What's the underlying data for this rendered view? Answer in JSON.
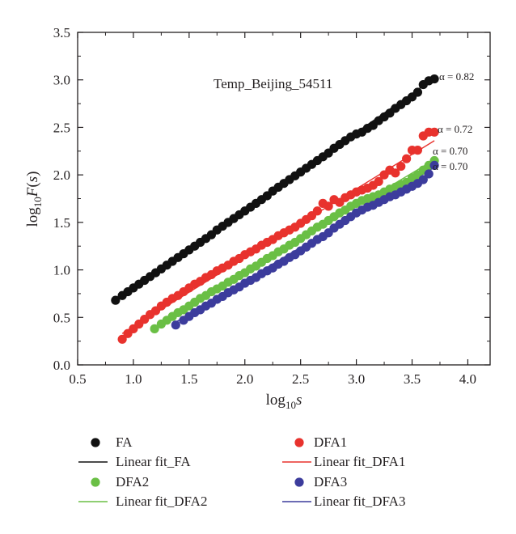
{
  "chart_data": {
    "type": "scatter",
    "title": "Temp_Beijing_54511",
    "xlabel": "log10s",
    "ylabel": "log10F(s)",
    "xlim": [
      0.5,
      4.2
    ],
    "ylim": [
      0.0,
      3.5
    ],
    "xticks": [
      "0.5",
      "1.0",
      "1.5",
      "2.0",
      "2.5",
      "3.0",
      "3.5",
      "4.0"
    ],
    "yticks": [
      "0.0",
      "0.5",
      "1.0",
      "1.5",
      "2.0",
      "2.5",
      "3.0",
      "3.5"
    ],
    "grid": false,
    "legend_position": "bottom",
    "series": [
      {
        "name": "FA",
        "color": "#111111",
        "alpha_label": "α = 0.82",
        "fit_name": "Linear fit_FA",
        "fit_color": "#111111",
        "fit": {
          "x": [
            0.85,
            3.7
          ],
          "y": [
            0.68,
            3.02
          ]
        },
        "x": [
          0.84,
          0.9,
          0.95,
          1.0,
          1.05,
          1.1,
          1.15,
          1.2,
          1.25,
          1.3,
          1.35,
          1.4,
          1.45,
          1.5,
          1.55,
          1.6,
          1.65,
          1.7,
          1.75,
          1.8,
          1.85,
          1.9,
          1.95,
          2.0,
          2.05,
          2.1,
          2.15,
          2.2,
          2.25,
          2.3,
          2.35,
          2.4,
          2.45,
          2.5,
          2.55,
          2.6,
          2.65,
          2.7,
          2.75,
          2.8,
          2.85,
          2.9,
          2.95,
          3.0,
          3.05,
          3.1,
          3.15,
          3.2,
          3.25,
          3.3,
          3.35,
          3.4,
          3.45,
          3.5,
          3.55,
          3.6,
          3.65,
          3.7
        ],
        "y": [
          0.68,
          0.73,
          0.77,
          0.81,
          0.85,
          0.89,
          0.93,
          0.97,
          1.01,
          1.05,
          1.09,
          1.13,
          1.17,
          1.21,
          1.25,
          1.29,
          1.33,
          1.37,
          1.42,
          1.46,
          1.5,
          1.54,
          1.58,
          1.62,
          1.66,
          1.7,
          1.74,
          1.78,
          1.83,
          1.87,
          1.91,
          1.95,
          1.99,
          2.03,
          2.07,
          2.11,
          2.15,
          2.19,
          2.23,
          2.28,
          2.32,
          2.36,
          2.4,
          2.43,
          2.45,
          2.49,
          2.52,
          2.57,
          2.61,
          2.65,
          2.7,
          2.74,
          2.78,
          2.82,
          2.87,
          2.95,
          2.99,
          3.01
        ]
      },
      {
        "name": "DFA1",
        "color": "#e8322d",
        "alpha_label": "α = 0.72",
        "fit_name": "Linear fit_DFA1",
        "fit_color": "#e8322d",
        "fit": {
          "x": [
            0.9,
            3.7
          ],
          "y": [
            0.33,
            2.36
          ]
        },
        "x": [
          0.9,
          0.95,
          1.0,
          1.05,
          1.1,
          1.15,
          1.2,
          1.25,
          1.3,
          1.35,
          1.4,
          1.45,
          1.5,
          1.55,
          1.6,
          1.65,
          1.7,
          1.75,
          1.8,
          1.85,
          1.9,
          1.95,
          2.0,
          2.05,
          2.1,
          2.15,
          2.2,
          2.25,
          2.3,
          2.35,
          2.4,
          2.45,
          2.5,
          2.55,
          2.6,
          2.65,
          2.7,
          2.75,
          2.8,
          2.85,
          2.9,
          2.95,
          3.0,
          3.05,
          3.1,
          3.15,
          3.2,
          3.25,
          3.3,
          3.35,
          3.4,
          3.45,
          3.5,
          3.55,
          3.6,
          3.65,
          3.7
        ],
        "y": [
          0.27,
          0.33,
          0.38,
          0.43,
          0.48,
          0.53,
          0.57,
          0.62,
          0.66,
          0.7,
          0.73,
          0.77,
          0.81,
          0.85,
          0.88,
          0.92,
          0.95,
          0.99,
          1.02,
          1.05,
          1.09,
          1.12,
          1.16,
          1.19,
          1.22,
          1.26,
          1.29,
          1.32,
          1.36,
          1.39,
          1.42,
          1.45,
          1.49,
          1.53,
          1.57,
          1.62,
          1.7,
          1.67,
          1.74,
          1.71,
          1.76,
          1.79,
          1.82,
          1.84,
          1.86,
          1.89,
          1.93,
          2.0,
          2.05,
          2.02,
          2.09,
          2.17,
          2.26,
          2.26,
          2.41,
          2.45,
          2.45
        ]
      },
      {
        "name": "DFA2",
        "color": "#6abf45",
        "alpha_label": "α = 0.70",
        "fit_name": "Linear fit_DFA2",
        "fit_color": "#6abf45",
        "fit": {
          "x": [
            1.2,
            3.7
          ],
          "y": [
            0.4,
            2.16
          ]
        },
        "x": [
          1.19,
          1.25,
          1.3,
          1.35,
          1.4,
          1.45,
          1.5,
          1.55,
          1.6,
          1.65,
          1.7,
          1.75,
          1.8,
          1.85,
          1.9,
          1.95,
          2.0,
          2.05,
          2.1,
          2.15,
          2.2,
          2.25,
          2.3,
          2.35,
          2.4,
          2.45,
          2.5,
          2.55,
          2.6,
          2.65,
          2.7,
          2.75,
          2.8,
          2.85,
          2.9,
          2.95,
          3.0,
          3.05,
          3.1,
          3.15,
          3.2,
          3.25,
          3.3,
          3.35,
          3.4,
          3.45,
          3.5,
          3.55,
          3.6,
          3.65,
          3.7
        ],
        "y": [
          0.38,
          0.43,
          0.47,
          0.51,
          0.55,
          0.58,
          0.62,
          0.66,
          0.7,
          0.73,
          0.77,
          0.8,
          0.83,
          0.87,
          0.9,
          0.94,
          0.97,
          1.01,
          1.04,
          1.08,
          1.12,
          1.15,
          1.19,
          1.22,
          1.26,
          1.29,
          1.33,
          1.37,
          1.41,
          1.45,
          1.48,
          1.52,
          1.56,
          1.6,
          1.63,
          1.67,
          1.7,
          1.73,
          1.75,
          1.77,
          1.79,
          1.82,
          1.85,
          1.87,
          1.9,
          1.92,
          1.97,
          2.0,
          2.05,
          2.1,
          2.15
        ]
      },
      {
        "name": "DFA3",
        "color": "#3c3c9c",
        "alpha_label": "α = 0.70",
        "fit_name": "Linear fit_DFA3",
        "fit_color": "#3c3c9c",
        "fit": {
          "x": [
            1.38,
            3.7
          ],
          "y": [
            0.45,
            2.08
          ]
        },
        "x": [
          1.38,
          1.45,
          1.5,
          1.55,
          1.6,
          1.65,
          1.7,
          1.75,
          1.8,
          1.85,
          1.9,
          1.95,
          2.0,
          2.05,
          2.1,
          2.15,
          2.2,
          2.25,
          2.3,
          2.35,
          2.4,
          2.45,
          2.5,
          2.55,
          2.6,
          2.65,
          2.7,
          2.75,
          2.8,
          2.85,
          2.9,
          2.95,
          3.0,
          3.05,
          3.1,
          3.15,
          3.2,
          3.25,
          3.3,
          3.35,
          3.4,
          3.45,
          3.5,
          3.55,
          3.6,
          3.65,
          3.7
        ],
        "y": [
          0.42,
          0.47,
          0.51,
          0.55,
          0.58,
          0.62,
          0.65,
          0.69,
          0.72,
          0.76,
          0.79,
          0.82,
          0.86,
          0.89,
          0.92,
          0.96,
          0.99,
          1.02,
          1.06,
          1.09,
          1.13,
          1.16,
          1.2,
          1.24,
          1.28,
          1.32,
          1.35,
          1.39,
          1.44,
          1.48,
          1.52,
          1.56,
          1.6,
          1.63,
          1.66,
          1.68,
          1.71,
          1.74,
          1.77,
          1.79,
          1.82,
          1.85,
          1.88,
          1.91,
          1.95,
          2.01,
          2.1
        ]
      }
    ]
  }
}
